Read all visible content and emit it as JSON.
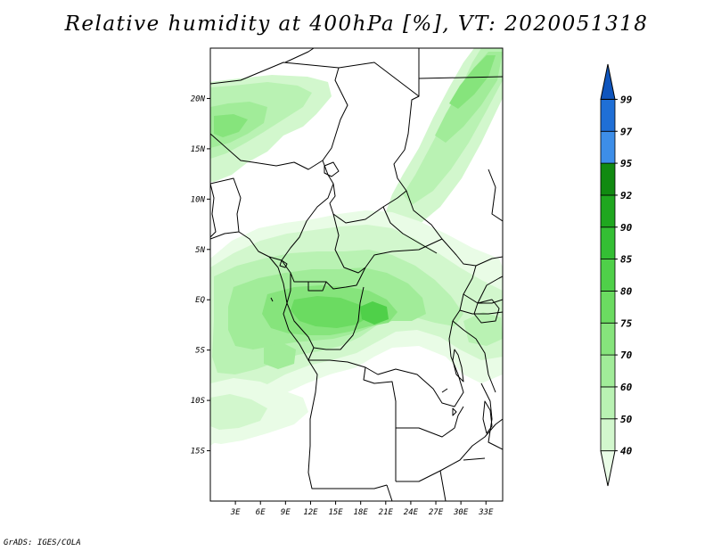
{
  "title": "Relative humidity at 400hPa [%], VT: 2020051318",
  "credit": "GrADS: IGES/COLA",
  "chart_data": {
    "type": "map-contour",
    "variable": "Relative humidity",
    "units": "%",
    "level": "400hPa",
    "valid_time": "2020051318",
    "lon_range": [
      0,
      35
    ],
    "lat_range": [
      -20,
      25
    ],
    "lon_ticks": [
      "3E",
      "6E",
      "9E",
      "12E",
      "15E",
      "18E",
      "21E",
      "24E",
      "27E",
      "30E",
      "33E"
    ],
    "lon_tick_values": [
      3,
      6,
      9,
      12,
      15,
      18,
      21,
      24,
      27,
      30,
      33
    ],
    "lat_ticks": [
      "20N",
      "15N",
      "10N",
      "5N",
      "EQ",
      "5S",
      "10S",
      "15S"
    ],
    "lat_tick_values": [
      20,
      15,
      10,
      5,
      0,
      -5,
      -10,
      -15
    ],
    "colorbar": {
      "levels": [
        "40",
        "50",
        "60",
        "70",
        "75",
        "80",
        "85",
        "90",
        "92",
        "95",
        "97",
        "99"
      ],
      "colors": [
        "#e9fce6",
        "#d2f7cd",
        "#b9f2b3",
        "#a1ec99",
        "#86e47c",
        "#6bdb61",
        "#4fd049",
        "#34bf34",
        "#1fa71f",
        "#118a11",
        "#3d8ee8",
        "#1f6fd6",
        "#0f55bd"
      ]
    },
    "grid": false
  }
}
